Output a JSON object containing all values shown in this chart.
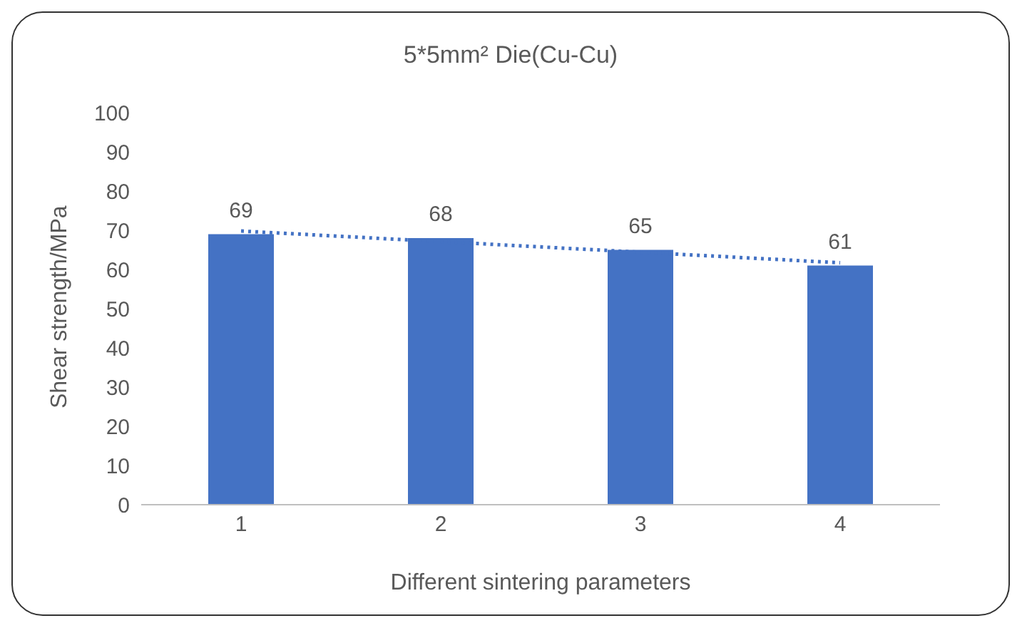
{
  "chart_data": {
    "type": "bar",
    "title": "5*5mm² Die(Cu-Cu)",
    "xlabel": "Different sintering parameters",
    "ylabel": "Shear strength/MPa",
    "categories": [
      "1",
      "2",
      "3",
      "4"
    ],
    "series": [
      {
        "color": "#4472c4",
        "values": [
          69,
          68,
          65,
          61
        ],
        "value_labels": [
          "69",
          "68",
          "65",
          "61"
        ]
      },
      {
        "type": "line",
        "color": "#4472c4",
        "line_style": "dotted",
        "marker": "none",
        "values": [
          69.8,
          67.1,
          64.4,
          61.7
        ]
      }
    ],
    "ylim": [
      0,
      100
    ],
    "yticks": [
      0,
      10,
      20,
      30,
      40,
      50,
      60,
      70,
      80,
      90,
      100
    ],
    "grid": false,
    "legend": false
  }
}
